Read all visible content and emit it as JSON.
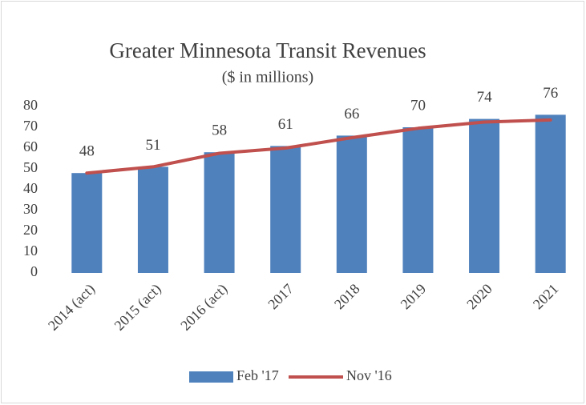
{
  "chart_data": {
    "type": "bar",
    "title": "Greater Minnesota Transit Revenues",
    "subtitle": "($ in millions)",
    "categories": [
      "2014 (act)",
      "2015 (act)",
      "2016 (act)",
      "2017",
      "2018",
      "2019",
      "2020",
      "2021"
    ],
    "series": [
      {
        "name": "Feb '17",
        "type": "bar",
        "color": "#4f81bd",
        "values": [
          48,
          51,
          58,
          61,
          66,
          70,
          74,
          76
        ]
      },
      {
        "name": "Nov '16",
        "type": "line",
        "color": "#c0504d",
        "values": [
          48,
          51,
          57.5,
          60,
          65,
          69.5,
          72.5,
          73.5
        ]
      }
    ],
    "ylim": [
      0,
      80
    ],
    "yticks": [
      0,
      10,
      20,
      30,
      40,
      50,
      60,
      70,
      80
    ],
    "grid": false,
    "legend": "bottom"
  }
}
